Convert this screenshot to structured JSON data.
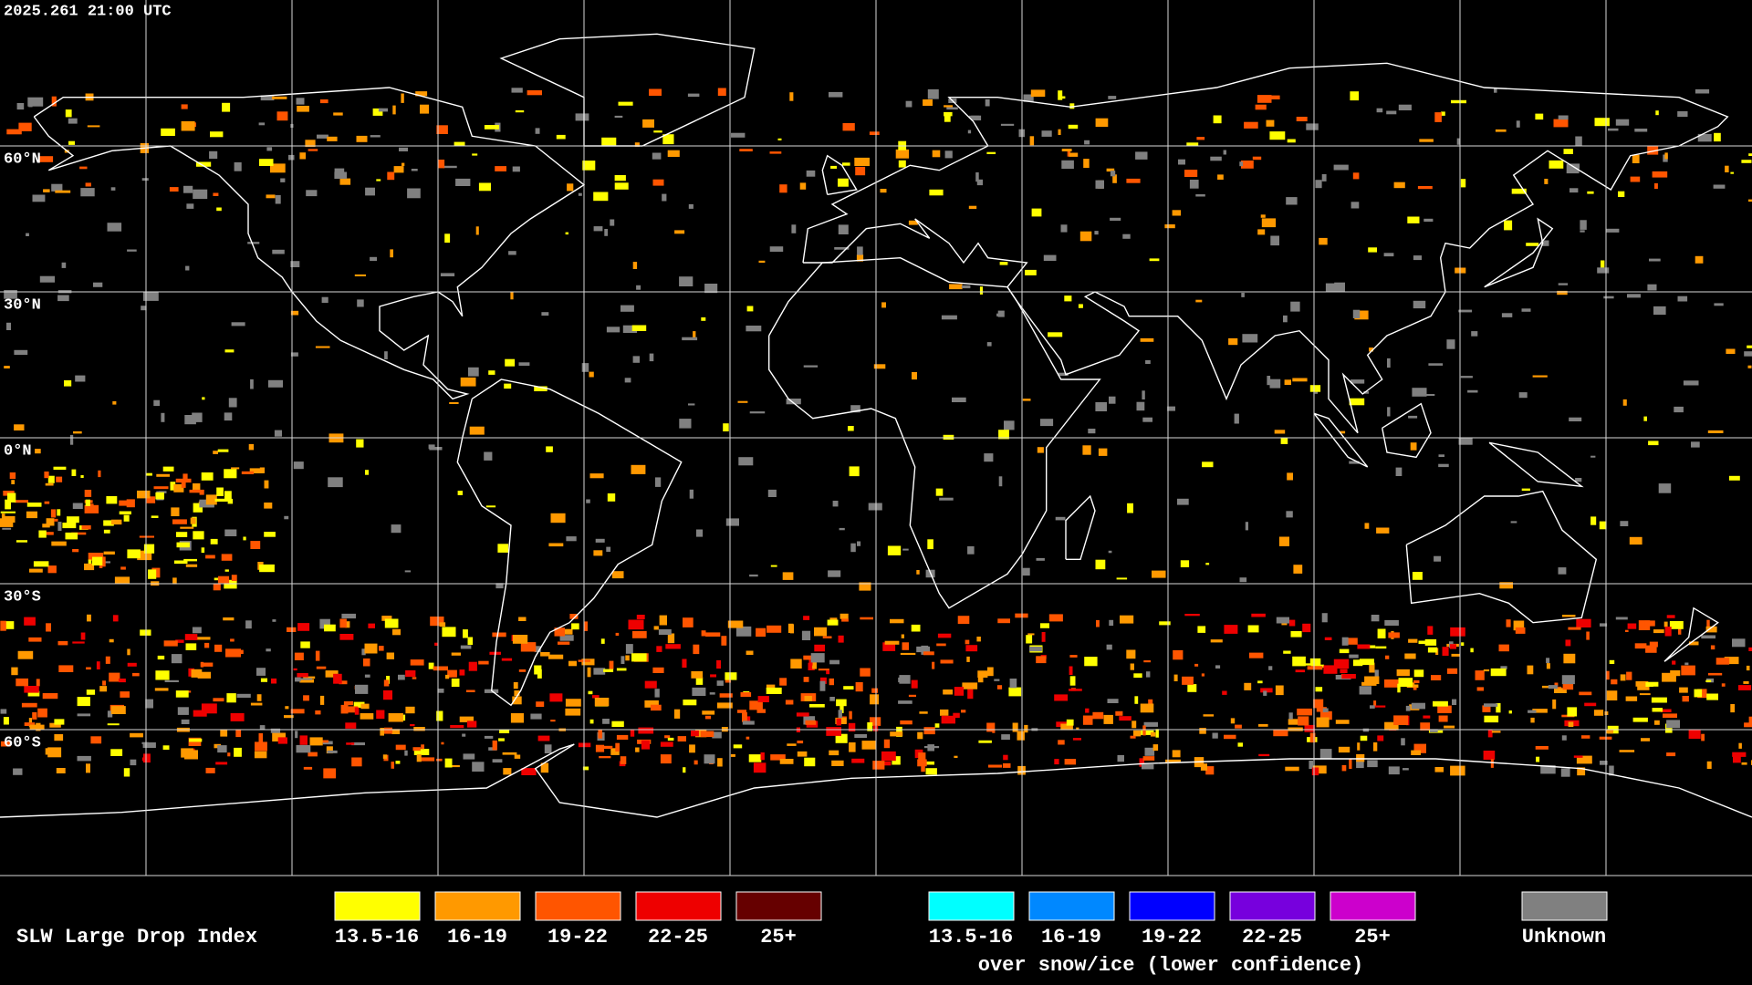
{
  "timestamp": "2025.261 21:00 UTC",
  "latitude_labels": [
    "60°N",
    "30°N",
    "0°N",
    "30°S",
    "60°S"
  ],
  "legend": {
    "title": "SLW Large Drop Index",
    "items": [
      {
        "label": "13.5-16",
        "color": "#ffff00"
      },
      {
        "label": "16-19",
        "color": "#ff9900"
      },
      {
        "label": "19-22",
        "color": "#ff5500"
      },
      {
        "label": "22-25",
        "color": "#ee0000"
      },
      {
        "label": "25+",
        "color": "#660000"
      }
    ],
    "snow_ice_items": [
      {
        "label": "13.5-16",
        "color": "#00ffff"
      },
      {
        "label": "16-19",
        "color": "#0088ff"
      },
      {
        "label": "19-22",
        "color": "#0000ff"
      },
      {
        "label": "22-25",
        "color": "#7700dd"
      },
      {
        "label": "25+",
        "color": "#cc00cc"
      }
    ],
    "snow_ice_caption": "over snow/ice (lower confidence)",
    "unknown": {
      "label": "Unknown",
      "color": "#808080"
    }
  }
}
